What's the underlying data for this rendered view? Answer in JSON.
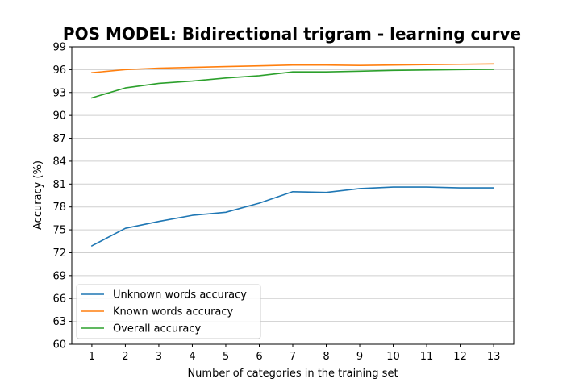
{
  "chart_data": {
    "type": "line",
    "title": "POS MODEL: Bidirectional trigram - learning curve",
    "xlabel": "Number of categories in the training set",
    "ylabel": "Accuracy (%)",
    "x": [
      1,
      2,
      3,
      4,
      5,
      6,
      7,
      8,
      9,
      10,
      11,
      12,
      13
    ],
    "xlim": [
      0.4,
      13.6
    ],
    "ylim": [
      60,
      99
    ],
    "yticks": [
      60,
      63,
      66,
      69,
      72,
      75,
      78,
      81,
      84,
      87,
      90,
      93,
      96,
      99
    ],
    "grid": "y-major",
    "legend_position": "lower-left",
    "series": [
      {
        "name": "Unknown words accuracy",
        "color": "#1f77b4",
        "values": [
          72.9,
          75.2,
          76.1,
          76.9,
          77.3,
          78.5,
          80.0,
          79.9,
          80.4,
          80.6,
          80.6,
          80.5,
          80.5
        ]
      },
      {
        "name": "Known words accuracy",
        "color": "#ff7f0e",
        "values": [
          95.6,
          96.0,
          96.2,
          96.3,
          96.4,
          96.5,
          96.6,
          96.6,
          96.55,
          96.6,
          96.65,
          96.7,
          96.75
        ]
      },
      {
        "name": "Overall accuracy",
        "color": "#2ca02c",
        "values": [
          92.3,
          93.6,
          94.2,
          94.5,
          94.9,
          95.2,
          95.7,
          95.7,
          95.8,
          95.9,
          95.95,
          96.0,
          96.05
        ]
      }
    ]
  }
}
